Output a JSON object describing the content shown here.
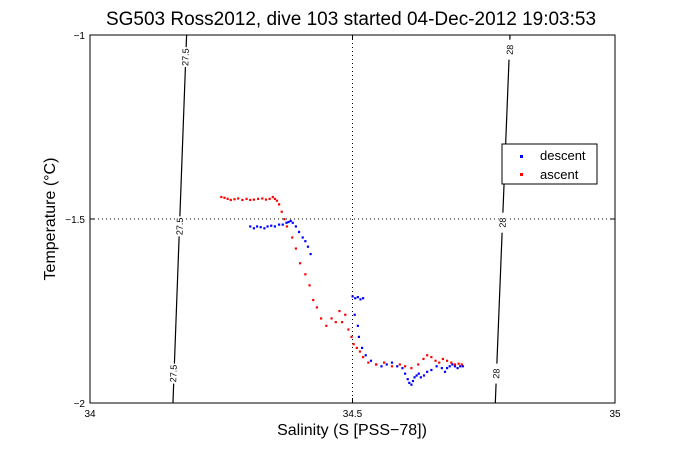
{
  "chart_data": {
    "type": "scatter",
    "title": "SG503 Ross2012, dive 103 started 04-Dec-2012 19:03:53",
    "xlabel": "Salinity (S [PSS−78])",
    "ylabel": "Temperature (°C)",
    "xlim": [
      34,
      35
    ],
    "ylim": [
      -2,
      -1
    ],
    "xticks": [
      34,
      34.5,
      35
    ],
    "xtick_labels": [
      "34",
      "34.5",
      "35"
    ],
    "yticks": [
      -2,
      -1.5,
      -1
    ],
    "ytick_labels": [
      "−2",
      "−1.5",
      "−1"
    ],
    "grid": "dotted at ticks",
    "legend_position": "right",
    "isopycnals": [
      {
        "label": "27.5",
        "points": [
          [
            34.184,
            -1
          ],
          [
            34.158,
            -2
          ]
        ],
        "label_positions": [
          [
            34.182,
            -1.06
          ],
          [
            34.171,
            -1.52
          ],
          [
            34.159,
            -1.92
          ]
        ]
      },
      {
        "label": "28",
        "points": [
          [
            34.8,
            -1
          ],
          [
            34.772,
            -2
          ]
        ],
        "label_positions": [
          [
            34.8,
            -1.04
          ],
          [
            34.786,
            -1.51
          ],
          [
            34.774,
            -1.92
          ]
        ]
      }
    ],
    "series": [
      {
        "name": "descent",
        "color": "#0000ff",
        "x": [
          34.305,
          34.312,
          34.318,
          34.325,
          34.332,
          34.338,
          34.345,
          34.352,
          34.36,
          34.367,
          34.374,
          34.378,
          34.382,
          34.386,
          34.392,
          34.398,
          34.405,
          34.41,
          34.415,
          34.42,
          34.5,
          34.505,
          34.51,
          34.515,
          34.52,
          34.504,
          34.51,
          34.512,
          34.518,
          34.525,
          34.535,
          34.545,
          34.555,
          34.565,
          34.575,
          34.585,
          34.595,
          34.6,
          34.605,
          34.608,
          34.612,
          34.615,
          34.618,
          34.622,
          34.626,
          34.63,
          34.636,
          34.642,
          34.65,
          34.66,
          34.67,
          34.676,
          34.68,
          34.685,
          34.69,
          34.695,
          34.7,
          34.705,
          34.71
        ],
        "y": [
          -1.52,
          -1.525,
          -1.52,
          -1.522,
          -1.525,
          -1.52,
          -1.518,
          -1.52,
          -1.515,
          -1.515,
          -1.51,
          -1.508,
          -1.505,
          -1.51,
          -1.52,
          -1.535,
          -1.55,
          -1.56,
          -1.575,
          -1.595,
          -1.71,
          -1.715,
          -1.712,
          -1.718,
          -1.715,
          -1.76,
          -1.79,
          -1.82,
          -1.85,
          -1.87,
          -1.885,
          -1.895,
          -1.9,
          -1.895,
          -1.89,
          -1.9,
          -1.905,
          -1.92,
          -1.935,
          -1.945,
          -1.95,
          -1.94,
          -1.93,
          -1.925,
          -1.92,
          -1.93,
          -1.925,
          -1.915,
          -1.91,
          -1.9,
          -1.905,
          -1.915,
          -1.905,
          -1.9,
          -1.895,
          -1.9,
          -1.905,
          -1.9,
          -1.9
        ]
      },
      {
        "name": "ascent",
        "color": "#ff0000",
        "x": [
          34.25,
          34.256,
          34.262,
          34.268,
          34.275,
          34.282,
          34.29,
          34.298,
          34.305,
          34.312,
          34.32,
          34.328,
          34.335,
          34.342,
          34.348,
          34.352,
          34.356,
          34.36,
          34.365,
          34.37,
          34.375,
          34.385,
          34.392,
          34.4,
          34.41,
          34.418,
          34.425,
          34.432,
          34.44,
          34.45,
          34.46,
          34.468,
          34.475,
          34.48,
          34.486,
          34.492,
          34.498,
          34.502,
          34.508,
          34.514,
          34.52,
          34.53,
          34.545,
          34.56,
          34.575,
          34.59,
          34.6,
          34.612,
          34.625,
          34.635,
          34.642,
          34.65,
          34.658,
          34.665,
          34.672,
          34.68,
          34.688,
          34.695,
          34.702,
          34.708
        ],
        "y": [
          -1.44,
          -1.442,
          -1.445,
          -1.448,
          -1.446,
          -1.444,
          -1.448,
          -1.445,
          -1.448,
          -1.447,
          -1.445,
          -1.444,
          -1.447,
          -1.445,
          -1.44,
          -1.445,
          -1.45,
          -1.46,
          -1.48,
          -1.5,
          -1.52,
          -1.55,
          -1.58,
          -1.62,
          -1.65,
          -1.68,
          -1.72,
          -1.74,
          -1.77,
          -1.79,
          -1.77,
          -1.78,
          -1.75,
          -1.78,
          -1.76,
          -1.8,
          -1.82,
          -1.84,
          -1.85,
          -1.86,
          -1.875,
          -1.89,
          -1.895,
          -1.89,
          -1.9,
          -1.895,
          -1.9,
          -1.905,
          -1.895,
          -1.88,
          -1.87,
          -1.875,
          -1.885,
          -1.89,
          -1.88,
          -1.885,
          -1.89,
          -1.895,
          -1.893,
          -1.895
        ]
      }
    ]
  }
}
